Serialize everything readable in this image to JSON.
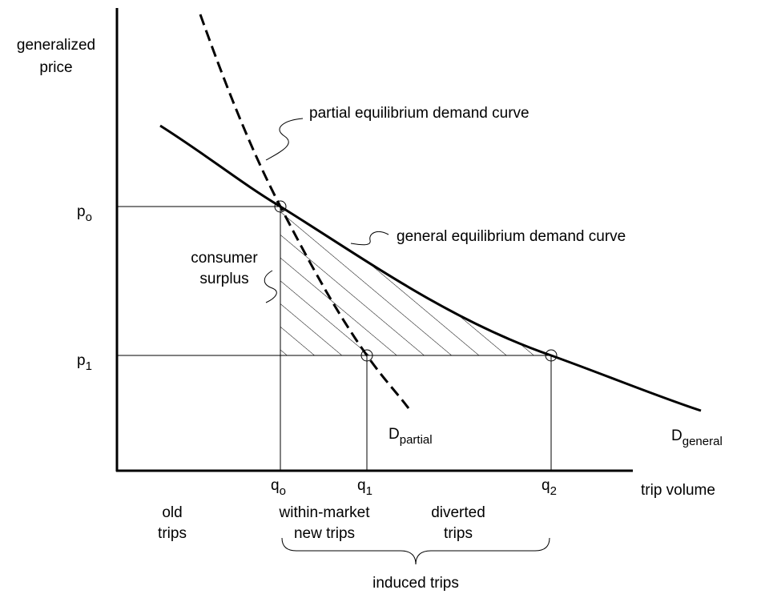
{
  "y_axis_label": [
    "generalized",
    "price"
  ],
  "x_axis_label": "trip volume",
  "price_levels": [
    {
      "main": "p",
      "sub": "o"
    },
    {
      "main": "p",
      "sub": "1"
    }
  ],
  "quantity_levels": [
    {
      "main": "q",
      "sub": "o"
    },
    {
      "main": "q",
      "sub": "1"
    },
    {
      "main": "q",
      "sub": "2"
    }
  ],
  "curve_labels": {
    "partial": "partial equilibrium demand curve",
    "general": "general equilibrium demand curve"
  },
  "curve_names": [
    {
      "main": "D",
      "sub": "partial"
    },
    {
      "main": "D",
      "sub": "general"
    }
  ],
  "area_label": [
    "consumer",
    "surplus"
  ],
  "segments": {
    "old": [
      "old",
      "trips"
    ],
    "within": [
      "within-market",
      "new trips"
    ],
    "diverted": [
      "diverted",
      "trips"
    ],
    "induced": "induced trips"
  }
}
